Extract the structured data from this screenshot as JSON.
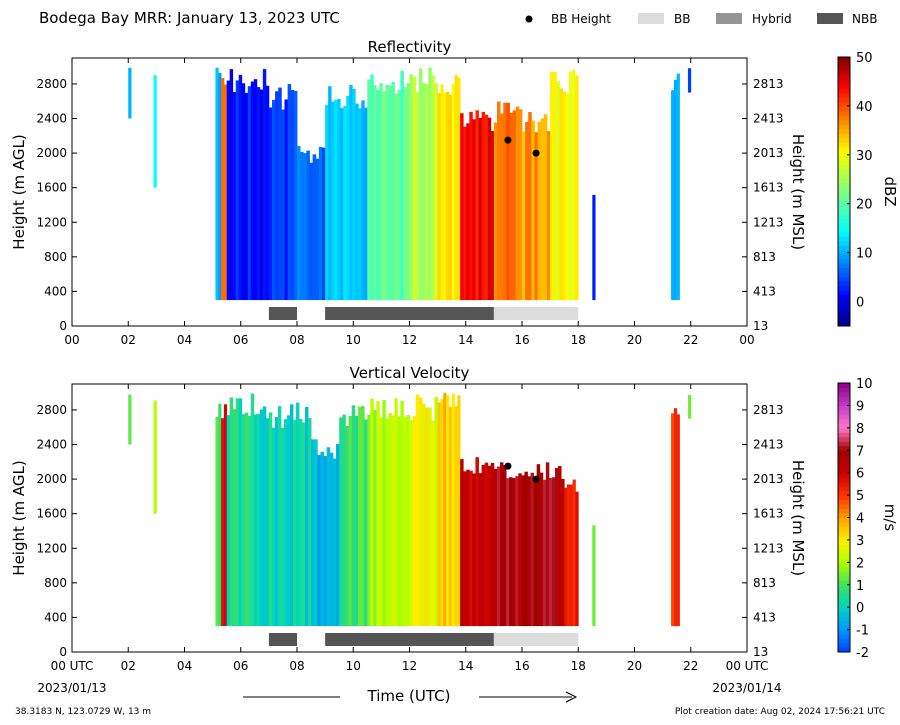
{
  "header": {
    "title": "Bodega Bay MRR:  January 13, 2023 UTC",
    "legend": [
      {
        "label": "BB Height",
        "kind": "dot",
        "color": "#000000"
      },
      {
        "label": "BB",
        "kind": "box",
        "color": "#dcdcdc"
      },
      {
        "label": "Hybrid",
        "kind": "box",
        "color": "#959595"
      },
      {
        "label": "NBB",
        "kind": "box",
        "color": "#555555"
      }
    ]
  },
  "footer": {
    "location": "38.3183 N, 123.0729 W, 13 m",
    "creation_date": "Plot creation date: Aug 02, 2024 17:56:21 UTC",
    "xaxis_title": "Time (UTC)",
    "start_label": "00 UTC",
    "start_date": "2023/01/13",
    "end_label": "00 UTC",
    "end_date": "2023/01/14"
  },
  "chart_data": [
    {
      "type": "heatmap",
      "title": "Reflectivity",
      "ylabel_left": "Height (m AGL)",
      "ylabel_right": "Height (m MSL)",
      "xlim": [
        0,
        24
      ],
      "ylim": [
        0,
        3100
      ],
      "x_ticks": [
        "00",
        "02",
        "04",
        "06",
        "08",
        "10",
        "12",
        "14",
        "16",
        "18",
        "20",
        "22",
        "00"
      ],
      "y_ticks_left": [
        "0",
        "400",
        "800",
        "1200",
        "1600",
        "2000",
        "2400",
        "2800"
      ],
      "y_ticks_right": [
        "13",
        "413",
        "813",
        "1213",
        "1613",
        "2013",
        "2413",
        "2813"
      ],
      "colorbar": {
        "label": "dBZ",
        "min": -5,
        "max": 50,
        "ticks": [
          "0",
          "10",
          "20",
          "30",
          "40",
          "50"
        ],
        "tick_values": [
          0,
          10,
          20,
          30,
          40,
          50
        ]
      },
      "bb_height_points": [
        {
          "time": 15.5,
          "height": 2150
        },
        {
          "time": 16.5,
          "height": 2000
        }
      ],
      "bb_type_bars": [
        {
          "start": 7.0,
          "end": 8.0,
          "kind": "NBB"
        },
        {
          "start": 9.0,
          "end": 15.0,
          "kind": "NBB"
        },
        {
          "start": 15.0,
          "end": 18.0,
          "kind": "BB"
        }
      ],
      "approx_segments": [
        {
          "start": 2.0,
          "end": 2.1,
          "low": 2400,
          "high": 3000,
          "value": 12
        },
        {
          "start": 2.9,
          "end": 3.0,
          "low": 1600,
          "high": 3000,
          "value": 12
        },
        {
          "start": 5.1,
          "end": 5.3,
          "low": 300,
          "high": 3000,
          "value": 10
        },
        {
          "start": 5.3,
          "end": 5.5,
          "low": 300,
          "high": 3000,
          "value": 38
        },
        {
          "start": 5.5,
          "end": 7.0,
          "low": 300,
          "high": 3000,
          "value": 2
        },
        {
          "start": 7.0,
          "end": 8.0,
          "low": 300,
          "high": 2800,
          "value": 4
        },
        {
          "start": 8.0,
          "end": 9.0,
          "low": 300,
          "high": 2100,
          "value": 6
        },
        {
          "start": 9.0,
          "end": 10.5,
          "low": 300,
          "high": 2800,
          "value": 12
        },
        {
          "start": 10.5,
          "end": 12.0,
          "low": 300,
          "high": 3000,
          "value": 20
        },
        {
          "start": 12.0,
          "end": 13.0,
          "low": 300,
          "high": 3000,
          "value": 26
        },
        {
          "start": 13.0,
          "end": 13.8,
          "low": 300,
          "high": 3000,
          "value": 31
        },
        {
          "start": 13.8,
          "end": 15.0,
          "low": 300,
          "high": 2500,
          "value": 44
        },
        {
          "start": 15.0,
          "end": 16.0,
          "low": 300,
          "high": 2600,
          "value": 38
        },
        {
          "start": 16.0,
          "end": 17.0,
          "low": 300,
          "high": 2500,
          "value": 36
        },
        {
          "start": 17.0,
          "end": 18.0,
          "low": 300,
          "high": 3000,
          "value": 30
        },
        {
          "start": 18.5,
          "end": 18.6,
          "low": 300,
          "high": 1600,
          "value": 3
        },
        {
          "start": 21.3,
          "end": 21.6,
          "low": 300,
          "high": 3000,
          "value": 10
        },
        {
          "start": 21.9,
          "end": 22.0,
          "low": 2700,
          "high": 3000,
          "value": 6
        }
      ]
    },
    {
      "type": "heatmap",
      "title": "Vertical Velocity",
      "ylabel_left": "Height (m AGL)",
      "ylabel_right": "Height (m MSL)",
      "xlim": [
        0,
        24
      ],
      "ylim": [
        0,
        3100
      ],
      "x_ticks": [
        "00 UTC",
        "02",
        "04",
        "06",
        "08",
        "10",
        "12",
        "14",
        "16",
        "18",
        "20",
        "22",
        "00 UTC"
      ],
      "y_ticks_left": [
        "0",
        "400",
        "800",
        "1200",
        "1600",
        "2000",
        "2400",
        "2800"
      ],
      "y_ticks_right": [
        "13",
        "413",
        "813",
        "1213",
        "1613",
        "2013",
        "2413",
        "2813"
      ],
      "colorbar": {
        "label": "m/s",
        "min": -2,
        "max": 10,
        "ticks": [
          "-2",
          "-1",
          "0",
          "1",
          "2",
          "3",
          "4",
          "5",
          "6",
          "7",
          "8",
          "9",
          "10"
        ],
        "tick_values": [
          -2,
          -1,
          0,
          1,
          2,
          3,
          4,
          5,
          6,
          7,
          8,
          9,
          10
        ]
      },
      "bb_height_points": [
        {
          "time": 15.5,
          "height": 2150
        },
        {
          "time": 16.5,
          "height": 2000
        }
      ],
      "bb_type_bars": [
        {
          "start": 7.0,
          "end": 8.0,
          "kind": "NBB"
        },
        {
          "start": 9.0,
          "end": 15.0,
          "kind": "NBB"
        },
        {
          "start": 15.0,
          "end": 18.0,
          "kind": "BB"
        }
      ],
      "approx_segments": [
        {
          "start": 2.0,
          "end": 2.1,
          "low": 2400,
          "high": 3000,
          "value": 1.5
        },
        {
          "start": 2.9,
          "end": 3.0,
          "low": 1600,
          "high": 3000,
          "value": 2.5
        },
        {
          "start": 5.1,
          "end": 5.3,
          "low": 300,
          "high": 3000,
          "value": 0.8
        },
        {
          "start": 5.3,
          "end": 5.5,
          "low": 300,
          "high": 3000,
          "value": 6
        },
        {
          "start": 5.5,
          "end": 7.0,
          "low": 300,
          "high": 3000,
          "value": 0.3
        },
        {
          "start": 7.0,
          "end": 8.5,
          "low": 300,
          "high": 2900,
          "value": 0.1
        },
        {
          "start": 8.5,
          "end": 9.5,
          "low": 300,
          "high": 2500,
          "value": -0.5
        },
        {
          "start": 9.5,
          "end": 10.5,
          "low": 300,
          "high": 2900,
          "value": 1
        },
        {
          "start": 10.5,
          "end": 12.0,
          "low": 300,
          "high": 3000,
          "value": 2
        },
        {
          "start": 12.0,
          "end": 13.0,
          "low": 300,
          "high": 3000,
          "value": 2.7
        },
        {
          "start": 13.0,
          "end": 13.8,
          "low": 300,
          "high": 3000,
          "value": 3.5
        },
        {
          "start": 13.8,
          "end": 15.0,
          "low": 300,
          "high": 2300,
          "value": 6.2
        },
        {
          "start": 15.0,
          "end": 17.5,
          "low": 300,
          "high": 2200,
          "value": 6.8
        },
        {
          "start": 17.5,
          "end": 18.0,
          "low": 300,
          "high": 2000,
          "value": 5.5
        },
        {
          "start": 18.5,
          "end": 18.6,
          "low": 300,
          "high": 1600,
          "value": 1.2
        },
        {
          "start": 21.3,
          "end": 21.6,
          "low": 300,
          "high": 3000,
          "value": 5
        },
        {
          "start": 21.9,
          "end": 22.0,
          "low": 2700,
          "high": 3000,
          "value": 1.5
        }
      ]
    }
  ]
}
